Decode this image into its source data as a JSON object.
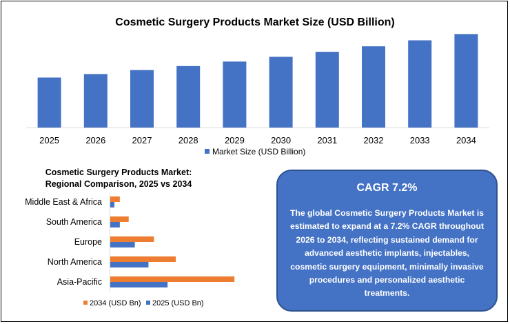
{
  "colors": {
    "bar_blue": "#4472c4",
    "bar_orange": "#ed7d31",
    "box_fill": "#4472c4",
    "box_border": "#2f528f",
    "axis": "#d9d9d9"
  },
  "chart_data": [
    {
      "type": "bar",
      "title": "Cosmetic Surgery Products Market Size (USD Billion)",
      "categories": [
        "2025",
        "2026",
        "2027",
        "2028",
        "2029",
        "2030",
        "2031",
        "2032",
        "2033",
        "2034"
      ],
      "series": [
        {
          "name": "Market Size (USD Billion)",
          "values": [
            20.0,
            21.4,
            23.0,
            24.6,
            26.4,
            28.3,
            30.3,
            32.5,
            34.9,
            37.4
          ]
        }
      ],
      "ylim": [
        0,
        40
      ],
      "grid": false,
      "legend": "bottom",
      "y_axis_visible": false
    },
    {
      "type": "bar",
      "orientation": "horizontal",
      "title": "Cosmetic Surgery Products Market: Regional Comparison, 2025 vs 2034",
      "categories": [
        "Middle East & Africa",
        "South America",
        "Europe",
        "North America",
        "Asia-Pacific"
      ],
      "series": [
        {
          "name": "2034 (USD Bn)",
          "color": "#ed7d31",
          "values": [
            1.4,
            2.7,
            6.4,
            9.6,
            18.2
          ]
        },
        {
          "name": "2025 (USD Bn)",
          "color": "#4472c4",
          "values": [
            0.6,
            1.4,
            3.6,
            5.6,
            8.4
          ]
        }
      ],
      "xlim": [
        0,
        20
      ],
      "grid": false,
      "legend": "bottom",
      "x_axis_visible": false
    }
  ],
  "cagr": {
    "title": "CAGR 7.2%",
    "text": "The global Cosmetic Surgery Products Market is estimated to expand at a 7.2% CAGR throughout 2026 to 2034, reflecting sustained demand for advanced aesthetic implants, injectables, cosmetic surgery equipment, minimally invasive procedures and personalized aesthetic treatments."
  }
}
